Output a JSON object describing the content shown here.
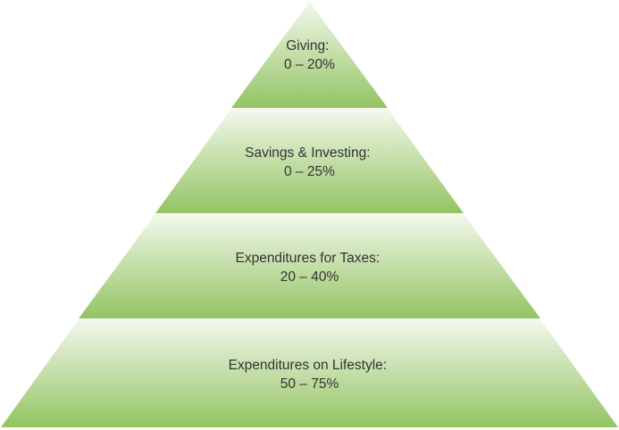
{
  "diagram": {
    "type": "pyramid",
    "colors": {
      "fill_light": "#f3f8ec",
      "fill_dark": "#93c463",
      "text": "#333333"
    },
    "tiers": [
      {
        "label": "Giving:",
        "range": "0 – 20%"
      },
      {
        "label": "Savings & Investing:",
        "range": "0 – 25%"
      },
      {
        "label": "Expenditures for Taxes:",
        "range": "20 – 40%"
      },
      {
        "label": "Expenditures on Lifestyle:",
        "range": "50 – 75%"
      }
    ]
  }
}
